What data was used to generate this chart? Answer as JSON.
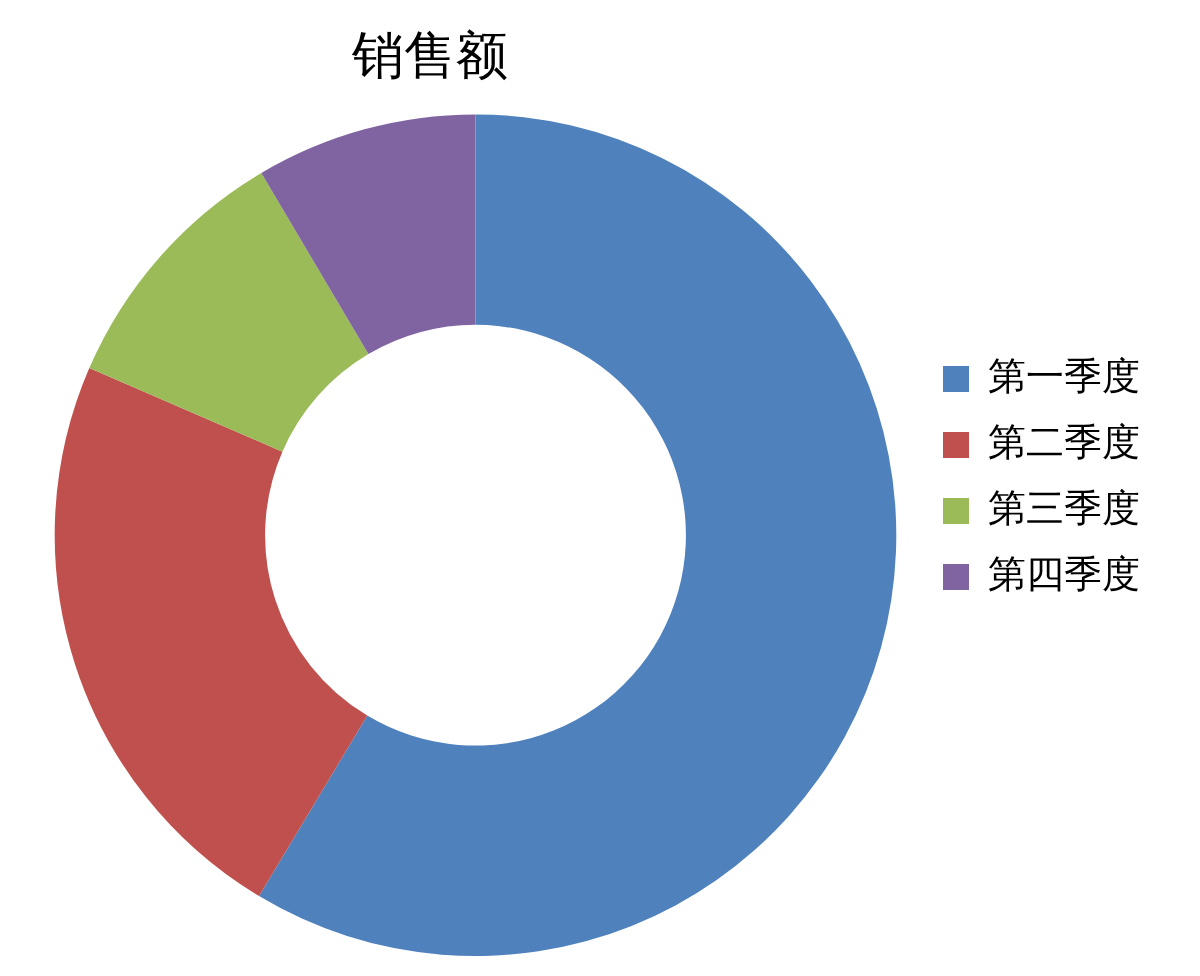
{
  "chart_data": {
    "type": "donut",
    "title": "销售额",
    "categories": [
      "第一季度",
      "第二季度",
      "第三季度",
      "第四季度"
    ],
    "values": [
      58.6,
      22.9,
      10.0,
      8.5
    ],
    "colors": [
      "#4f81bd",
      "#c0504d",
      "#9bbb59",
      "#8064a2"
    ],
    "legend": "right"
  }
}
